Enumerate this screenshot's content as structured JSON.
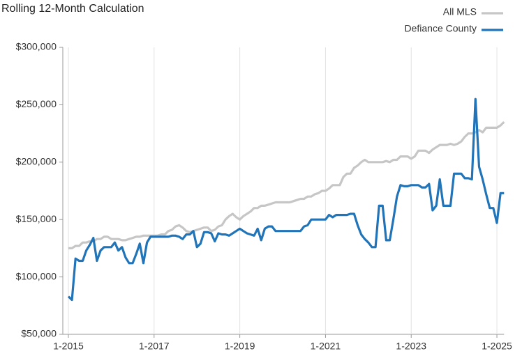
{
  "chart_data": {
    "type": "line",
    "title": "Rolling 12-Month Calculation",
    "categories": [
      "1-2015",
      null,
      null,
      null,
      null,
      null,
      null,
      null,
      null,
      null,
      null,
      null,
      null,
      null,
      null,
      null,
      null,
      null,
      null,
      null,
      null,
      null,
      null,
      null,
      "1-2017",
      null,
      null,
      null,
      null,
      null,
      null,
      null,
      null,
      null,
      null,
      null,
      null,
      null,
      null,
      null,
      null,
      null,
      null,
      null,
      null,
      null,
      null,
      null,
      "1-2019",
      null,
      null,
      null,
      null,
      null,
      null,
      null,
      null,
      null,
      null,
      null,
      null,
      null,
      null,
      null,
      null,
      null,
      null,
      null,
      null,
      null,
      null,
      null,
      "1-2021",
      null,
      null,
      null,
      null,
      null,
      null,
      null,
      null,
      null,
      null,
      null,
      null,
      null,
      null,
      null,
      null,
      null,
      null,
      null,
      null,
      null,
      null,
      null,
      "1-2023",
      null,
      null,
      null,
      null,
      null,
      null,
      null,
      null,
      null,
      null,
      null,
      null,
      null,
      null,
      null,
      null,
      null,
      null,
      null,
      null,
      null,
      null,
      null,
      "1-2025",
      null,
      null
    ],
    "series": [
      {
        "name": "All MLS",
        "color": "#c6c6c6",
        "values": [
          125000,
          125000,
          127000,
          127000,
          130000,
          130000,
          131000,
          131000,
          133000,
          133000,
          135000,
          135000,
          133000,
          133000,
          133000,
          132000,
          132000,
          133000,
          134000,
          135000,
          135000,
          136000,
          136000,
          136000,
          136000,
          136000,
          137000,
          137000,
          140000,
          141000,
          144000,
          145000,
          143000,
          140000,
          139000,
          140000,
          141000,
          142000,
          143000,
          143000,
          140000,
          141000,
          144000,
          145000,
          150000,
          153000,
          155000,
          152000,
          150000,
          153000,
          155000,
          157000,
          160000,
          160000,
          162000,
          162000,
          163000,
          164000,
          165000,
          165000,
          165000,
          165000,
          165000,
          166000,
          167000,
          168000,
          168000,
          170000,
          170000,
          172000,
          173000,
          175000,
          175000,
          177000,
          180000,
          180000,
          180000,
          187000,
          190000,
          190000,
          195000,
          197000,
          200000,
          202000,
          200000,
          200000,
          200000,
          200000,
          200000,
          201000,
          200000,
          202000,
          202000,
          205000,
          205000,
          205000,
          203000,
          205000,
          210000,
          210000,
          210000,
          208000,
          211000,
          213000,
          215000,
          215000,
          215000,
          216000,
          215000,
          216000,
          218000,
          222000,
          225000,
          225000,
          226000,
          228000,
          226000,
          230000,
          230000,
          230000,
          230000,
          232000,
          235000
        ]
      },
      {
        "name": "Defiance County",
        "color": "#2174b8",
        "values": [
          83000,
          80000,
          116000,
          114000,
          114000,
          123000,
          128000,
          134000,
          114000,
          123000,
          126000,
          126000,
          126000,
          130000,
          123000,
          126000,
          117000,
          112000,
          112000,
          120000,
          129000,
          112000,
          130000,
          135000,
          135000,
          135000,
          135000,
          135000,
          135000,
          136000,
          136000,
          135000,
          133000,
          137000,
          137000,
          140000,
          126000,
          129000,
          139000,
          139000,
          138000,
          131000,
          138000,
          137000,
          137000,
          136000,
          138000,
          140000,
          142000,
          140000,
          138000,
          137000,
          136000,
          142000,
          132000,
          142000,
          144000,
          144000,
          140000,
          140000,
          140000,
          140000,
          140000,
          140000,
          140000,
          140000,
          144000,
          145000,
          150000,
          150000,
          150000,
          150000,
          150000,
          154000,
          152000,
          154000,
          154000,
          154000,
          154000,
          155000,
          155000,
          145000,
          137000,
          133000,
          130000,
          126000,
          126000,
          162000,
          162000,
          132000,
          132000,
          150000,
          170000,
          180000,
          179000,
          179000,
          180000,
          180000,
          180000,
          178000,
          178000,
          181000,
          158000,
          162000,
          185000,
          162000,
          162000,
          162000,
          190000,
          190000,
          190000,
          186000,
          186000,
          185000,
          255000,
          196000,
          185000,
          172000,
          160000,
          160000,
          147000,
          173000,
          173000
        ]
      }
    ],
    "ylim": [
      50000,
      300000
    ],
    "yticks": [
      {
        "value": 50000,
        "label": "$50,000"
      },
      {
        "value": 100000,
        "label": "$100,000"
      },
      {
        "value": 150000,
        "label": "$150,000"
      },
      {
        "value": 200000,
        "label": "$200,000"
      },
      {
        "value": 250000,
        "label": "$250,000"
      },
      {
        "value": 300000,
        "label": "$300,000"
      }
    ],
    "grid": true,
    "legend": "top-right"
  }
}
